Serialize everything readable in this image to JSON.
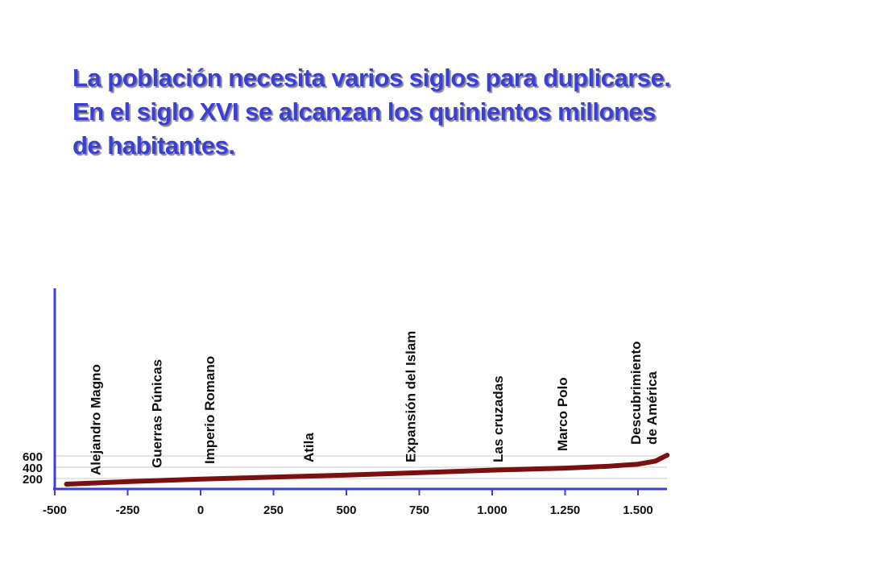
{
  "title_lines": [
    "La población necesita varios siglos para duplicarse.",
    "En el siglo XVI se alcanzan los quinientos millones",
    "de habitantes."
  ],
  "chart_data": {
    "type": "line",
    "xlim": [
      -500,
      1600
    ],
    "ylim": [
      0,
      2500
    ],
    "x_tick_labels": [
      "-500",
      "-250",
      "0",
      "250",
      "500",
      "750",
      "1.000",
      "1.250",
      "1.500"
    ],
    "x_tick_values": [
      -500,
      -250,
      0,
      250,
      500,
      750,
      1000,
      1250,
      1500
    ],
    "y_tick_labels": [
      "600",
      "400",
      "200"
    ],
    "y_tick_values": [
      600,
      400,
      200
    ],
    "grid": true,
    "series": [
      {
        "color": "#7a1010",
        "x": [
          -460,
          -250,
          0,
          250,
          500,
          750,
          1000,
          1250,
          1400,
          1500,
          1560,
          1600
        ],
        "y": [
          100,
          150,
          200,
          240,
          280,
          330,
          380,
          420,
          460,
          500,
          560,
          680
        ]
      }
    ],
    "annotations": [
      {
        "lines": [
          "Alejandro Magno"
        ],
        "x": -360
      },
      {
        "lines": [
          "Guerras Púnicas"
        ],
        "x": -150
      },
      {
        "lines": [
          "Imperio Romano"
        ],
        "x": 30
      },
      {
        "lines": [
          "Atila"
        ],
        "x": 370
      },
      {
        "lines": [
          "Expansión del Islam"
        ],
        "x": 720
      },
      {
        "lines": [
          "Las cruzadas"
        ],
        "x": 1020
      },
      {
        "lines": [
          "Marco Polo"
        ],
        "x": 1240
      },
      {
        "lines": [
          "Descubrimiento",
          "de América"
        ],
        "x": 1492
      }
    ]
  }
}
